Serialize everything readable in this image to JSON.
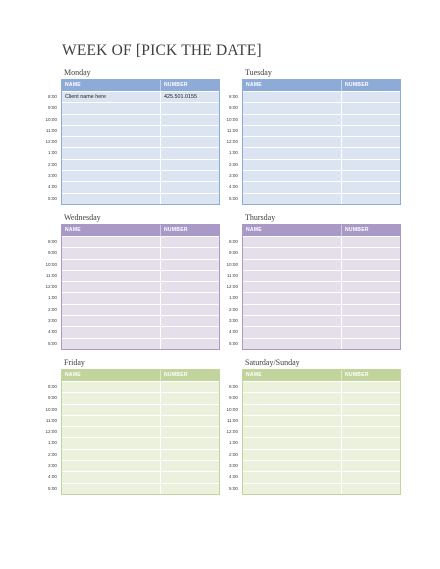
{
  "title": "WEEK OF [PICK THE DATE]",
  "colors": {
    "blue_header": "#8eaad7",
    "blue_row": "#dbe5f1",
    "purple_header": "#a899c7",
    "purple_row": "#e5dfec",
    "green_header": "#c1d49c",
    "green_row": "#ebf1dd"
  },
  "columns": {
    "name": "NAME",
    "number": "NUMBER"
  },
  "times": [
    "8:00",
    "9:00",
    "10:00",
    "11:00",
    "12:00",
    "1:00",
    "2:00",
    "3:00",
    "4:00",
    "5:00"
  ],
  "days": {
    "monday": {
      "label": "Monday",
      "entries": [
        {
          "name": "Client name here",
          "number": "425.501.0155"
        },
        {
          "name": "",
          "number": ""
        },
        {
          "name": "",
          "number": ""
        },
        {
          "name": "",
          "number": ""
        },
        {
          "name": "",
          "number": ""
        },
        {
          "name": "",
          "number": ""
        },
        {
          "name": "",
          "number": ""
        },
        {
          "name": "",
          "number": ""
        },
        {
          "name": "",
          "number": ""
        },
        {
          "name": "",
          "number": ""
        }
      ]
    },
    "tuesday": {
      "label": "Tuesday"
    },
    "wednesday": {
      "label": "Wednesday"
    },
    "thursday": {
      "label": "Thursday"
    },
    "friday": {
      "label": "Friday"
    },
    "weekend": {
      "label": "Saturday/Sunday"
    }
  }
}
